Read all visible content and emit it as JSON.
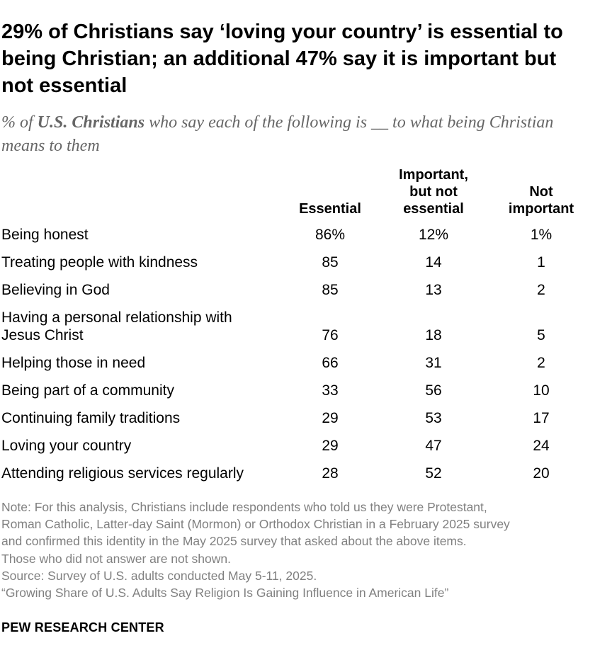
{
  "title": "29% of Christians say ‘loving your country’ is essential to being Christian; an additional 47% say it is important but not essential",
  "subtitle": {
    "prefix": "% of ",
    "emphasis": "U.S. Christians",
    "suffix": " who say each of the following is __ to what being Christian means to them"
  },
  "chart_data": {
    "type": "table",
    "columns": [
      {
        "key": "essential",
        "lines": [
          "Essential"
        ]
      },
      {
        "key": "important",
        "lines": [
          "Important,",
          "but not",
          "essential"
        ]
      },
      {
        "key": "not_important",
        "lines": [
          "Not",
          "important"
        ]
      }
    ],
    "rows": [
      {
        "label": [
          "Being honest"
        ],
        "values": [
          "86%",
          "12%",
          "1%"
        ]
      },
      {
        "label": [
          "Treating people with kindness"
        ],
        "values": [
          "85",
          "14",
          "1"
        ]
      },
      {
        "label": [
          "Believing in God"
        ],
        "values": [
          "85",
          "13",
          "2"
        ]
      },
      {
        "label": [
          "Having a personal relationship with",
          "Jesus Christ"
        ],
        "values": [
          "76",
          "18",
          "5"
        ]
      },
      {
        "label": [
          "Helping those in need"
        ],
        "values": [
          "66",
          "31",
          "2"
        ]
      },
      {
        "label": [
          "Being part of a community"
        ],
        "values": [
          "33",
          "56",
          "10"
        ]
      },
      {
        "label": [
          "Continuing family traditions"
        ],
        "values": [
          "29",
          "53",
          "17"
        ]
      },
      {
        "label": [
          "Loving your country"
        ],
        "values": [
          "29",
          "47",
          "24"
        ]
      },
      {
        "label": [
          "Attending religious services regularly"
        ],
        "values": [
          "28",
          "52",
          "20"
        ]
      }
    ]
  },
  "notes": [
    "Note: For this analysis, Christians include respondents who told us they were Protestant,",
    "Roman Catholic, Latter-day Saint (Mormon) or Orthodox Christian in a February 2025 survey",
    "and confirmed this identity in the May 2025 survey that asked about the above items.",
    "Those who did not answer are not shown.",
    "Source: Survey of U.S. adults conducted May 5-11, 2025.",
    "“Growing Share of U.S. Adults Say Religion Is Gaining Influence in American Life”"
  ],
  "brand": "PEW RESEARCH CENTER"
}
